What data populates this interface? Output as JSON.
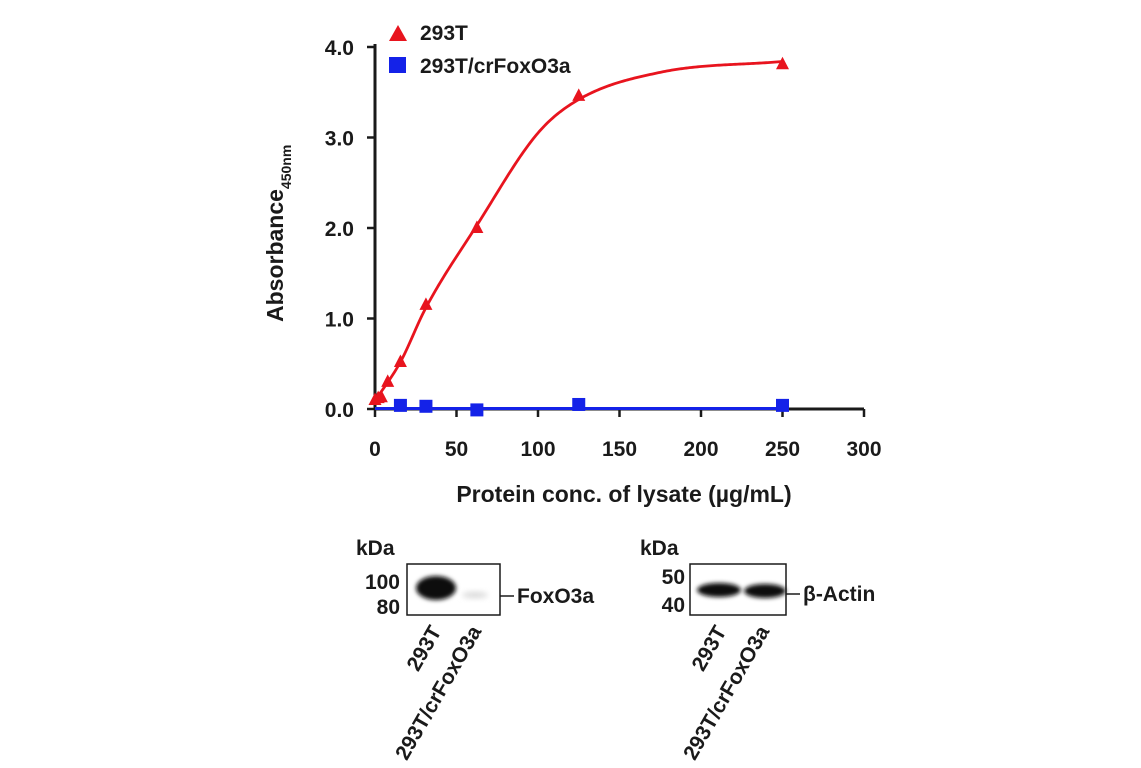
{
  "chart_data": [
    {
      "type": "scatter",
      "xlabel": "Protein conc. of lysate (µg/mL)",
      "ylabel": "Absorbance",
      "ylabel_subscript": "450nm",
      "xlim": [
        0,
        300
      ],
      "ylim": [
        0,
        4.0
      ],
      "x_ticks": [
        "0",
        "50",
        "100",
        "150",
        "200",
        "250",
        "300"
      ],
      "y_ticks": [
        "0.0",
        "1.0",
        "2.0",
        "3.0",
        "4.0"
      ],
      "grid": false,
      "legend_position": "top-left",
      "series": [
        {
          "name": "293T",
          "marker": "triangle",
          "color": "#e8141e",
          "fit_line": true,
          "x": [
            0,
            1.95,
            3.9,
            7.8,
            15.6,
            31.25,
            62.5,
            125,
            250
          ],
          "y": [
            0.1,
            0.12,
            0.13,
            0.3,
            0.52,
            1.15,
            2.0,
            3.46,
            3.81
          ]
        },
        {
          "name": "293T/crFoxO3a",
          "marker": "square",
          "color": "#1422e8",
          "fit_line": true,
          "x": [
            15.6,
            31.25,
            62.5,
            125,
            250
          ],
          "y": [
            0.04,
            0.03,
            -0.01,
            0.05,
            0.04
          ]
        }
      ]
    }
  ],
  "blots": [
    {
      "unit": "kDa",
      "markers": [
        "100",
        "80"
      ],
      "protein": "FoxO3a",
      "lanes": [
        "293T",
        "293T/crFoxO3a"
      ]
    },
    {
      "unit": "kDa",
      "markers": [
        "50",
        "40"
      ],
      "protein": "β-Actin",
      "lanes": [
        "293T",
        "293T/crFoxO3a"
      ]
    }
  ]
}
